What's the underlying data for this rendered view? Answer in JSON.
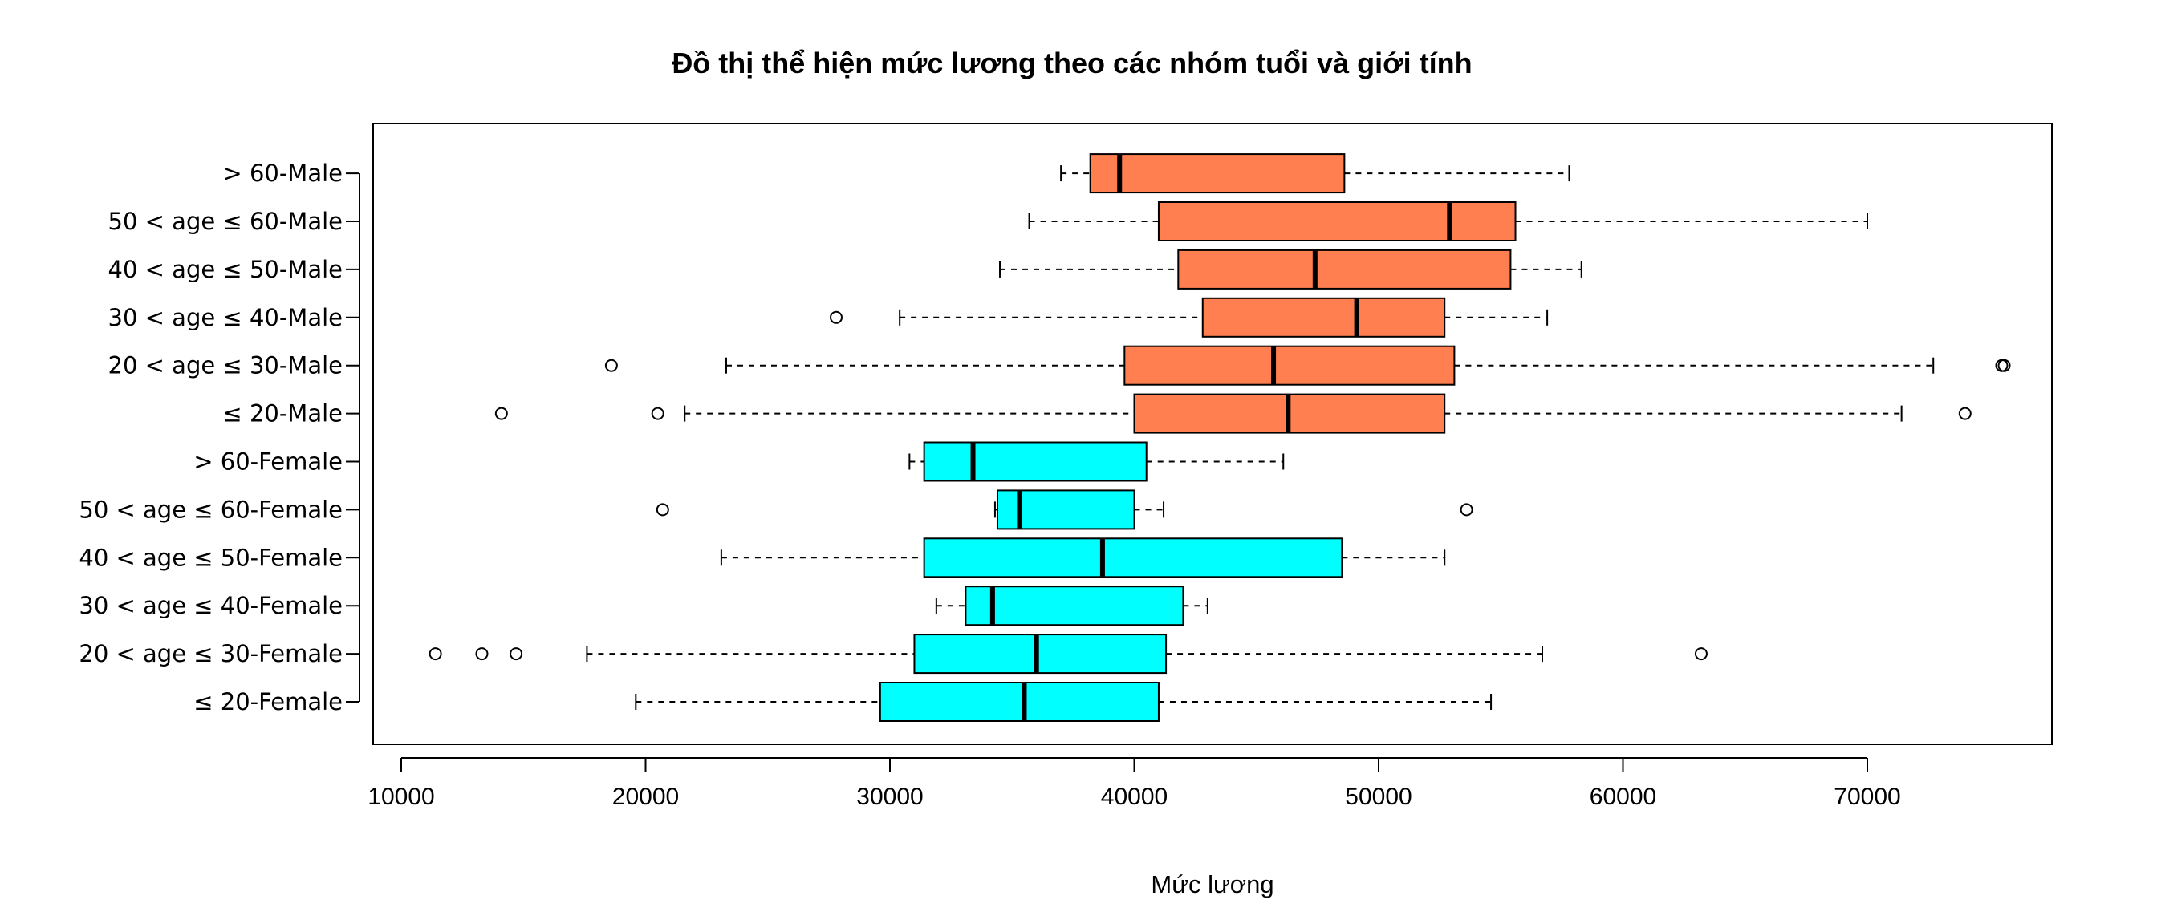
{
  "chart_data": {
    "type": "boxplot",
    "orientation": "horizontal",
    "title": "Đồ thị thể hiện mức lương theo các nhóm tuổi và giới tính",
    "xlabel": "Mức lương",
    "ylabel": "",
    "xlim": [
      9000,
      77000
    ],
    "xticks": [
      10000,
      20000,
      30000,
      40000,
      50000,
      60000,
      70000
    ],
    "grid": false,
    "legend": "none",
    "colors": {
      "male": "#FF7F50",
      "female": "#00FFFF",
      "outline": "#000000"
    },
    "series": [
      {
        "category": "≤ 20-Female",
        "group": "female",
        "whisker_low": 19600,
        "q1": 29600,
        "median": 35500,
        "q3": 41000,
        "whisker_high": 54600,
        "outliers": []
      },
      {
        "category": "20 < age ≤ 30-Female",
        "group": "female",
        "whisker_low": 17600,
        "q1": 31000,
        "median": 36000,
        "q3": 41300,
        "whisker_high": 56700,
        "outliers": [
          11400,
          13300,
          14700,
          63200
        ]
      },
      {
        "category": "30 < age ≤ 40-Female",
        "group": "female",
        "whisker_low": 31900,
        "q1": 33100,
        "median": 34200,
        "q3": 42000,
        "whisker_high": 43000,
        "outliers": []
      },
      {
        "category": "40 < age ≤ 50-Female",
        "group": "female",
        "whisker_low": 23100,
        "q1": 31400,
        "median": 38700,
        "q3": 48500,
        "whisker_high": 52700,
        "outliers": []
      },
      {
        "category": "50 < age ≤ 60-Female",
        "group": "female",
        "whisker_low": 34300,
        "q1": 34400,
        "median": 35300,
        "q3": 40000,
        "whisker_high": 41200,
        "outliers": [
          20700,
          53600
        ]
      },
      {
        "category": "> 60-Female",
        "group": "female",
        "whisker_low": 30800,
        "q1": 31400,
        "median": 33400,
        "q3": 40500,
        "whisker_high": 46100,
        "outliers": []
      },
      {
        "category": "≤ 20-Male",
        "group": "male",
        "whisker_low": 21600,
        "q1": 40000,
        "median": 46300,
        "q3": 52700,
        "whisker_high": 71400,
        "outliers": [
          14100,
          20500,
          74000
        ]
      },
      {
        "category": "20 < age ≤ 30-Male",
        "group": "male",
        "whisker_low": 23300,
        "q1": 39600,
        "median": 45700,
        "q3": 53100,
        "whisker_high": 72700,
        "outliers": [
          18600,
          75500,
          75600
        ]
      },
      {
        "category": "30 < age ≤ 40-Male",
        "group": "male",
        "whisker_low": 30400,
        "q1": 42800,
        "median": 49100,
        "q3": 52700,
        "whisker_high": 56900,
        "outliers": [
          27800
        ]
      },
      {
        "category": "40 < age ≤ 50-Male",
        "group": "male",
        "whisker_low": 34500,
        "q1": 41800,
        "median": 47400,
        "q3": 55400,
        "whisker_high": 58300,
        "outliers": []
      },
      {
        "category": "50 < age ≤ 60-Male",
        "group": "male",
        "whisker_low": 35700,
        "q1": 41000,
        "median": 52900,
        "q3": 55600,
        "whisker_high": 70000,
        "outliers": []
      },
      {
        "category": "> 60-Male",
        "group": "male",
        "whisker_low": 37000,
        "q1": 38200,
        "median": 39400,
        "q3": 48600,
        "whisker_high": 57800,
        "outliers": []
      }
    ]
  }
}
